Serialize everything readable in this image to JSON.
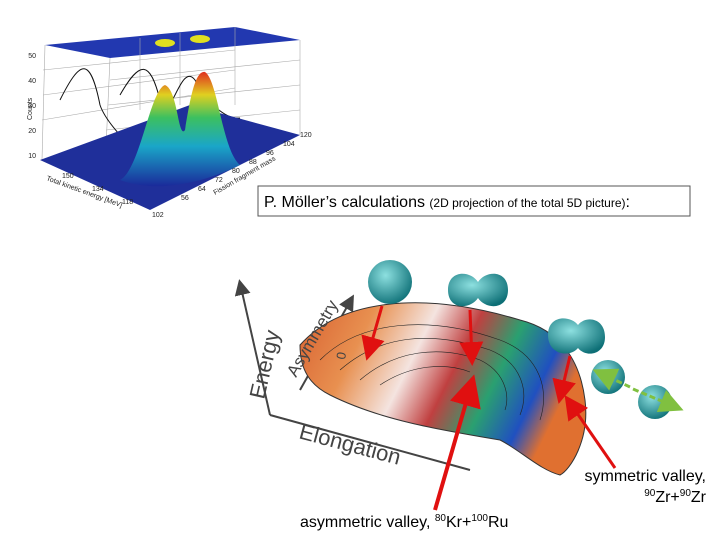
{
  "top_plot": {
    "z_label": "Counts",
    "x_label": "Total kinetic energy [MeV]",
    "y_label": "Fission fragment mass",
    "z_ticks": [
      "50",
      "40",
      "30",
      "20",
      "10"
    ],
    "x_ticks": [
      "150",
      "134",
      "118",
      "102"
    ],
    "y_ticks": [
      "120",
      "104",
      "96",
      "88",
      "80",
      "72",
      "64",
      "56"
    ]
  },
  "caption": {
    "title": "P. Möller’s calculations",
    "note": "(2D projection of the total 5D picture)",
    "colon": ":"
  },
  "landscape": {
    "energy_label": "Energy",
    "asymmetry_label": "Asymmetry",
    "elongation_label": "Elongation",
    "zero_label": "0"
  },
  "symmetric_label": {
    "text": "symmetric valley,",
    "mass_a": "90",
    "element_a": "Zr+",
    "mass_b": "90",
    "element_b": "Zr"
  },
  "asymmetric_label": {
    "text": "asymmetric valley, ",
    "mass_a": "80",
    "element_a": "Kr+",
    "mass_b": "100",
    "element_b": "Ru"
  }
}
